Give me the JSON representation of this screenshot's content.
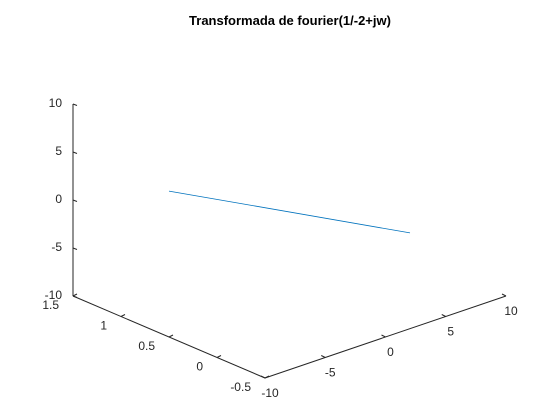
{
  "chart_data": {
    "type": "line",
    "title": "Transformada de fourier(1/-2+jw)",
    "xlabel": "",
    "ylabel": "",
    "zlabel": "",
    "xlim": [
      -10,
      10
    ],
    "ylim": [
      -0.5,
      1.5
    ],
    "zlim": [
      -10,
      10
    ],
    "x_ticks": [
      -10,
      -5,
      0,
      5,
      10
    ],
    "y_ticks": [
      -0.5,
      0,
      0.5,
      1,
      1.5
    ],
    "z_ticks": [
      -10,
      -5,
      0,
      5,
      10
    ],
    "x_tick_labels": [
      "-10",
      "-5",
      "0",
      "5",
      "10"
    ],
    "y_tick_labels": [
      "-0.5",
      "0",
      "0.5",
      "1",
      "1.5"
    ],
    "z_tick_labels": [
      "-10",
      "-5",
      "0",
      "5",
      "10"
    ],
    "grid": false,
    "series": [
      {
        "color": "#0072BD",
        "points": [
          {
            "x": -10,
            "y": 0.5,
            "z": 5.2
          },
          {
            "x": 10,
            "y": 0.5,
            "z": -7.7
          }
        ]
      }
    ]
  }
}
